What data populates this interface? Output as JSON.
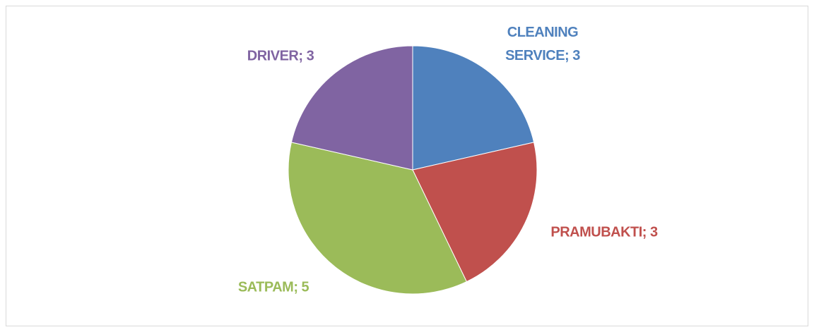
{
  "chart_data": {
    "type": "pie",
    "categories": [
      "CLEANING SERVICE",
      "PRAMUBAKTI",
      "SATPAM",
      "DRIVER"
    ],
    "values": [
      3,
      3,
      5,
      3
    ],
    "colors": [
      "#4f81bd",
      "#c0504d",
      "#9bbb59",
      "#8064a2"
    ],
    "label_separator": "; "
  }
}
